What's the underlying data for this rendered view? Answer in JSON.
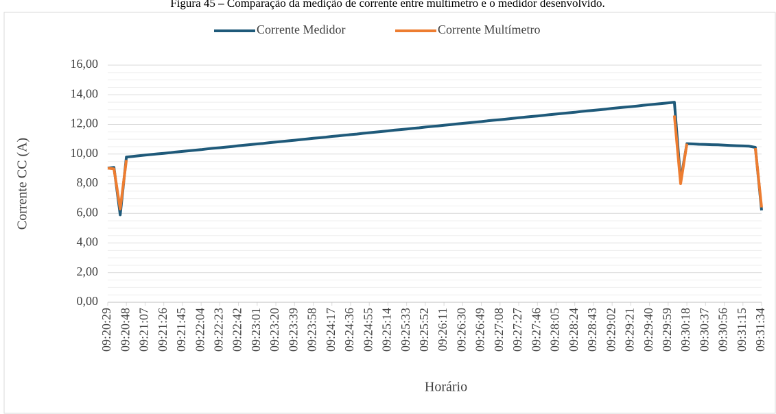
{
  "chart_data": {
    "type": "line",
    "title": "Figura 45 – Comparação da medição de corrente entre multímetro e o medidor desenvolvido.",
    "xlabel": "Horário",
    "ylabel": "Corrente CC (A)",
    "categories": [
      "09:20:29",
      null,
      null,
      "09:20:48",
      null,
      null,
      "09:21:07",
      null,
      null,
      "09:21:26",
      null,
      null,
      "09:21:45",
      null,
      null,
      "09:22:04",
      null,
      null,
      "09:22:23",
      null,
      null,
      "09:22:42",
      null,
      null,
      "09:23:01",
      null,
      null,
      "09:23:20",
      null,
      null,
      "09:23:39",
      null,
      null,
      "09:23:58",
      null,
      null,
      "09:24:17",
      null,
      null,
      "09:24:36",
      null,
      null,
      "09:24:55",
      null,
      null,
      "09:25:14",
      null,
      null,
      "09:25:33",
      null,
      null,
      "09:25:52",
      null,
      null,
      "09:26:11",
      null,
      null,
      "09:26:30",
      null,
      null,
      "09:26:49",
      null,
      null,
      "09:27:08",
      null,
      null,
      "09:27:27",
      null,
      null,
      "09:27:46",
      null,
      null,
      "09:28:05",
      null,
      null,
      "09:28:24",
      null,
      null,
      "09:28:43",
      null,
      null,
      "09:29:02",
      null,
      null,
      "09:29:21",
      null,
      null,
      "09:29:40",
      null,
      null,
      "09:29:59",
      null,
      null,
      "09:30:18",
      null,
      null,
      "09:30:37",
      null,
      null,
      "09:30:56",
      null,
      null,
      "09:31:15",
      null,
      null,
      "09:31:34"
    ],
    "series": [
      {
        "name": "Corrente Medidor",
        "color": "#1f5a7a",
        "values": [
          9.05,
          9.1,
          5.9,
          9.8,
          9.84,
          9.88,
          9.93,
          9.97,
          10.01,
          10.05,
          10.09,
          10.14,
          10.18,
          10.22,
          10.26,
          10.3,
          10.35,
          10.39,
          10.43,
          10.47,
          10.51,
          10.56,
          10.6,
          10.64,
          10.68,
          10.72,
          10.77,
          10.81,
          10.85,
          10.89,
          10.93,
          10.98,
          11.02,
          11.06,
          11.1,
          11.14,
          11.19,
          11.23,
          11.27,
          11.31,
          11.35,
          11.4,
          11.44,
          11.48,
          11.52,
          11.56,
          11.61,
          11.65,
          11.69,
          11.73,
          11.77,
          11.82,
          11.86,
          11.9,
          11.94,
          11.98,
          12.03,
          12.07,
          12.11,
          12.15,
          12.19,
          12.24,
          12.28,
          12.32,
          12.36,
          12.4,
          12.45,
          12.49,
          12.53,
          12.57,
          12.61,
          12.66,
          12.7,
          12.74,
          12.78,
          12.82,
          12.87,
          12.91,
          12.95,
          12.99,
          13.03,
          13.08,
          13.12,
          13.16,
          13.2,
          13.24,
          13.29,
          13.33,
          13.37,
          13.41,
          13.45,
          13.5,
          8.2,
          10.7,
          10.68,
          10.66,
          10.65,
          10.63,
          10.62,
          10.6,
          10.58,
          10.56,
          10.55,
          10.53,
          10.45,
          6.2
        ]
      },
      {
        "name": "Corrente Multímetro",
        "color": "#ed7d31",
        "values": [
          9.05,
          9.0,
          6.3,
          9.6,
          null,
          null,
          null,
          null,
          null,
          null,
          null,
          null,
          null,
          null,
          null,
          null,
          null,
          null,
          null,
          null,
          null,
          null,
          null,
          null,
          null,
          null,
          null,
          null,
          null,
          null,
          null,
          null,
          null,
          null,
          null,
          null,
          null,
          null,
          null,
          null,
          null,
          null,
          null,
          null,
          null,
          null,
          null,
          null,
          null,
          null,
          null,
          null,
          null,
          null,
          null,
          null,
          null,
          null,
          null,
          null,
          null,
          null,
          null,
          null,
          null,
          null,
          null,
          null,
          null,
          null,
          null,
          null,
          null,
          null,
          null,
          null,
          null,
          null,
          null,
          null,
          null,
          null,
          null,
          null,
          null,
          null,
          null,
          null,
          null,
          null,
          null,
          12.6,
          8.0,
          10.7,
          null,
          null,
          null,
          null,
          null,
          null,
          null,
          null,
          null,
          null,
          10.4,
          6.4
        ]
      }
    ],
    "ylim": [
      0,
      16
    ],
    "yticks": [
      {
        "value": 0,
        "label": "0,00"
      },
      {
        "value": 2,
        "label": "2,00"
      },
      {
        "value": 4,
        "label": "4,00"
      },
      {
        "value": 6,
        "label": "6,00"
      },
      {
        "value": 8,
        "label": "8,00"
      },
      {
        "value": 10,
        "label": "10,00"
      },
      {
        "value": 12,
        "label": "12,00"
      },
      {
        "value": 14,
        "label": "14,00"
      },
      {
        "value": 16,
        "label": "16,00"
      }
    ],
    "grid": true,
    "legend": "top"
  }
}
